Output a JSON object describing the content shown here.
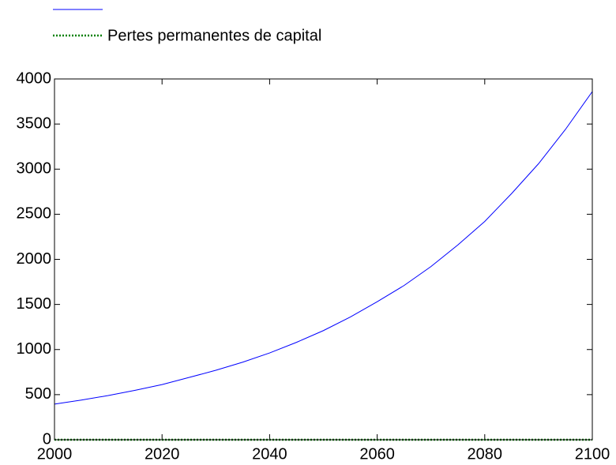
{
  "chart_data": {
    "type": "line",
    "x": [
      2000,
      2005,
      2010,
      2015,
      2020,
      2025,
      2030,
      2035,
      2040,
      2045,
      2050,
      2055,
      2060,
      2065,
      2070,
      2075,
      2080,
      2085,
      2090,
      2095,
      2100
    ],
    "series": [
      {
        "color": "#0000ff",
        "style": "solid",
        "values": [
          395,
          440,
          490,
          548,
          612,
          690,
          770,
          860,
          962,
          1080,
          1210,
          1360,
          1530,
          1710,
          1920,
          2160,
          2420,
          2730,
          3060,
          3440,
          3860
        ]
      },
      {
        "name": "Pertes permanentes de capital",
        "color": "#008000",
        "style": "dotted",
        "values": [
          0,
          0,
          0,
          0,
          0,
          0,
          0,
          0,
          0,
          0,
          0,
          0,
          0,
          0,
          0,
          0,
          0,
          0,
          0,
          0,
          0
        ]
      }
    ],
    "xlim": [
      2000,
      2100
    ],
    "xticks": [
      2000,
      2020,
      2040,
      2060,
      2080,
      2100
    ],
    "ylim": [
      0,
      4000
    ],
    "yticks": [
      0,
      500,
      1000,
      1500,
      2000,
      2500,
      3000,
      3500,
      4000
    ],
    "grid": false,
    "legend": "top-left"
  }
}
